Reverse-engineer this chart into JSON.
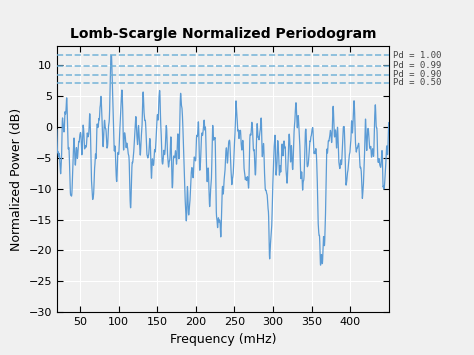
{
  "title": "Lomb-Scargle Normalized Periodogram",
  "xlabel": "Frequency (mHz)",
  "ylabel": "Normalized Power (dB)",
  "xlim": [
    20,
    450
  ],
  "ylim": [
    -30,
    13
  ],
  "yticks": [
    -30,
    -25,
    -20,
    -15,
    -10,
    -5,
    0,
    5,
    10
  ],
  "xticks": [
    50,
    100,
    150,
    200,
    250,
    300,
    350,
    400
  ],
  "line_color": "#5B9BD5",
  "dashed_lines": [
    {
      "y": 11.5,
      "label": "Pd = 1.00"
    },
    {
      "y": 9.8,
      "label": "Pd = 0.99"
    },
    {
      "y": 8.4,
      "label": "Pd = 0.90"
    },
    {
      "y": 7.1,
      "label": "Pd = 0.50"
    }
  ],
  "dashed_color": "#6BAED6",
  "background_color": "#f0f0f0",
  "plot_bg": "#f0f0f0",
  "grid_color": "#ffffff",
  "freq_start": 20,
  "freq_end": 450,
  "n_points": 3000,
  "seed": 7
}
